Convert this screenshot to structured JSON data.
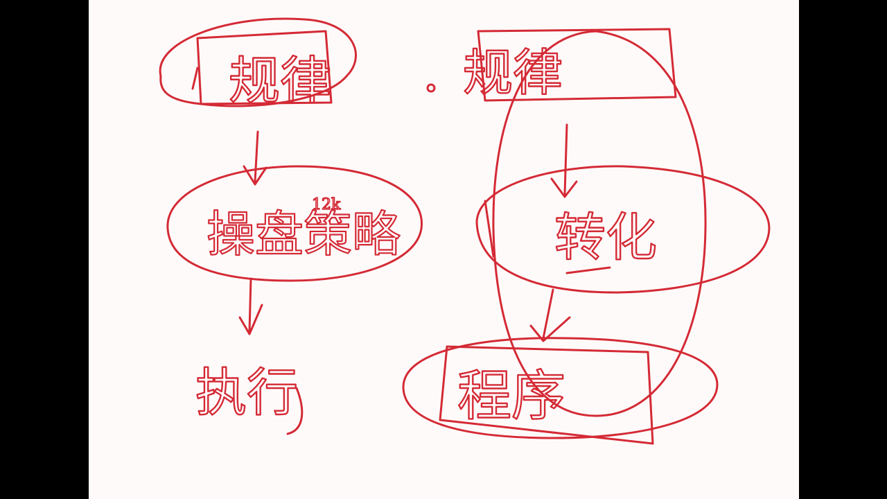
{
  "ink_color": "#d42a35",
  "paper_color": "#fefafa",
  "frame_color": "#000000",
  "diagram": {
    "left_column": {
      "top_node": "规律",
      "middle_node": "操盘策略",
      "middle_node_annotation": "12k",
      "bottom_node": "执行"
    },
    "right_column": {
      "top_node": "规律",
      "middle_node": "转化",
      "bottom_node": "程序"
    }
  }
}
